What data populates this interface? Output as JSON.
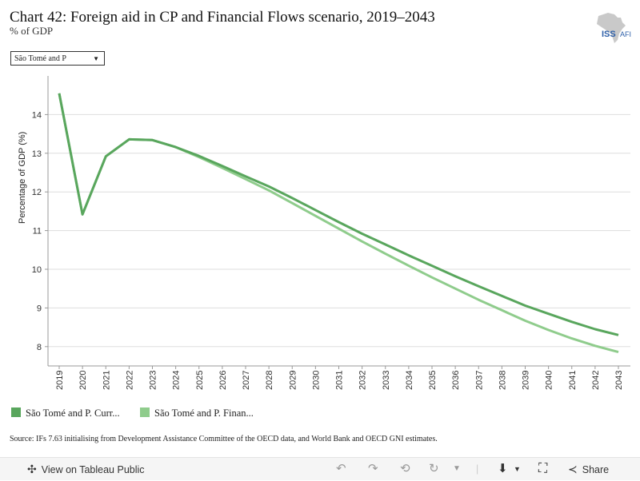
{
  "header": {
    "title": "Chart 42: Foreign aid in CP and Financial Flows scenario, 2019–2043",
    "subtitle": "% of GDP"
  },
  "logo": {
    "text_iss": "ISS",
    "text_afi": "AFI"
  },
  "filter": {
    "selected": "São Tomé and P"
  },
  "source": "Source: IFs 7.63 initialising from Development Assistance Committee of the OECD data, and World Bank and OECD GNI estimates.",
  "toolbar": {
    "view_label": "View on Tableau Public",
    "share_label": "Share"
  },
  "colors": {
    "current": "#59a65d",
    "financial": "#8fcc8c",
    "grid": "#dddddd"
  },
  "chart_data": {
    "type": "line",
    "title": "Chart 42: Foreign aid in CP and Financial Flows scenario, 2019–2043",
    "subtitle": "% of GDP",
    "xlabel": "",
    "ylabel": "Percentage of GDP (%)",
    "ylim": [
      7.5,
      15.0
    ],
    "yticks": [
      8,
      9,
      10,
      11,
      12,
      13,
      14
    ],
    "grid": true,
    "legend_position": "bottom",
    "x": [
      2019,
      2020,
      2021,
      2022,
      2023,
      2024,
      2025,
      2026,
      2027,
      2028,
      2029,
      2030,
      2031,
      2032,
      2033,
      2034,
      2035,
      2036,
      2037,
      2038,
      2039,
      2040,
      2041,
      2042,
      2043
    ],
    "series": [
      {
        "name": "São Tomé and P. Curr...",
        "values": [
          14.55,
          11.42,
          12.92,
          13.36,
          13.34,
          13.16,
          12.93,
          12.67,
          12.4,
          12.14,
          11.84,
          11.53,
          11.22,
          10.92,
          10.64,
          10.36,
          10.09,
          9.82,
          9.56,
          9.31,
          9.06,
          8.85,
          8.64,
          8.45,
          8.3
        ]
      },
      {
        "name": "São Tomé and P. Finan...",
        "values": [
          14.55,
          11.42,
          12.92,
          13.36,
          13.34,
          13.16,
          12.9,
          12.62,
          12.33,
          12.04,
          11.71,
          11.38,
          11.05,
          10.72,
          10.4,
          10.09,
          9.79,
          9.5,
          9.21,
          8.94,
          8.67,
          8.43,
          8.21,
          8.02,
          7.86
        ]
      }
    ]
  }
}
